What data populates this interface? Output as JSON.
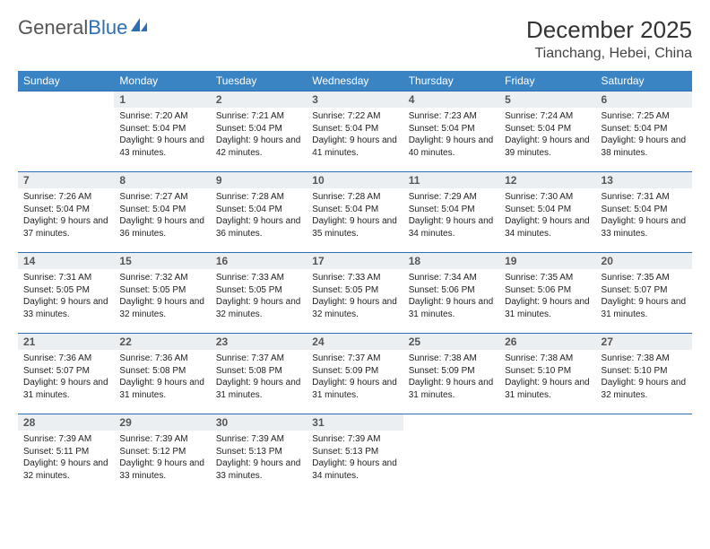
{
  "logo": {
    "part1": "General",
    "part2": "Blue"
  },
  "title": "December 2025",
  "location": "Tianchang, Hebei, China",
  "colors": {
    "header_bg": "#3b84c4",
    "header_text": "#ffffff",
    "rule": "#2e6fb3",
    "daynum_bg": "#eceff1",
    "daynum_text": "#555555",
    "body_text": "#222222",
    "logo_gray": "#555555",
    "logo_blue": "#2e6fb3"
  },
  "fonts": {
    "title_size_pt": 20,
    "location_size_pt": 12,
    "dayheader_size_pt": 9,
    "daynum_size_pt": 9,
    "body_size_pt": 7.5
  },
  "day_headers": [
    "Sunday",
    "Monday",
    "Tuesday",
    "Wednesday",
    "Thursday",
    "Friday",
    "Saturday"
  ],
  "weeks": [
    [
      {
        "num": "",
        "sunrise": "",
        "sunset": "",
        "daylight": ""
      },
      {
        "num": "1",
        "sunrise": "Sunrise: 7:20 AM",
        "sunset": "Sunset: 5:04 PM",
        "daylight": "Daylight: 9 hours and 43 minutes."
      },
      {
        "num": "2",
        "sunrise": "Sunrise: 7:21 AM",
        "sunset": "Sunset: 5:04 PM",
        "daylight": "Daylight: 9 hours and 42 minutes."
      },
      {
        "num": "3",
        "sunrise": "Sunrise: 7:22 AM",
        "sunset": "Sunset: 5:04 PM",
        "daylight": "Daylight: 9 hours and 41 minutes."
      },
      {
        "num": "4",
        "sunrise": "Sunrise: 7:23 AM",
        "sunset": "Sunset: 5:04 PM",
        "daylight": "Daylight: 9 hours and 40 minutes."
      },
      {
        "num": "5",
        "sunrise": "Sunrise: 7:24 AM",
        "sunset": "Sunset: 5:04 PM",
        "daylight": "Daylight: 9 hours and 39 minutes."
      },
      {
        "num": "6",
        "sunrise": "Sunrise: 7:25 AM",
        "sunset": "Sunset: 5:04 PM",
        "daylight": "Daylight: 9 hours and 38 minutes."
      }
    ],
    [
      {
        "num": "7",
        "sunrise": "Sunrise: 7:26 AM",
        "sunset": "Sunset: 5:04 PM",
        "daylight": "Daylight: 9 hours and 37 minutes."
      },
      {
        "num": "8",
        "sunrise": "Sunrise: 7:27 AM",
        "sunset": "Sunset: 5:04 PM",
        "daylight": "Daylight: 9 hours and 36 minutes."
      },
      {
        "num": "9",
        "sunrise": "Sunrise: 7:28 AM",
        "sunset": "Sunset: 5:04 PM",
        "daylight": "Daylight: 9 hours and 36 minutes."
      },
      {
        "num": "10",
        "sunrise": "Sunrise: 7:28 AM",
        "sunset": "Sunset: 5:04 PM",
        "daylight": "Daylight: 9 hours and 35 minutes."
      },
      {
        "num": "11",
        "sunrise": "Sunrise: 7:29 AM",
        "sunset": "Sunset: 5:04 PM",
        "daylight": "Daylight: 9 hours and 34 minutes."
      },
      {
        "num": "12",
        "sunrise": "Sunrise: 7:30 AM",
        "sunset": "Sunset: 5:04 PM",
        "daylight": "Daylight: 9 hours and 34 minutes."
      },
      {
        "num": "13",
        "sunrise": "Sunrise: 7:31 AM",
        "sunset": "Sunset: 5:04 PM",
        "daylight": "Daylight: 9 hours and 33 minutes."
      }
    ],
    [
      {
        "num": "14",
        "sunrise": "Sunrise: 7:31 AM",
        "sunset": "Sunset: 5:05 PM",
        "daylight": "Daylight: 9 hours and 33 minutes."
      },
      {
        "num": "15",
        "sunrise": "Sunrise: 7:32 AM",
        "sunset": "Sunset: 5:05 PM",
        "daylight": "Daylight: 9 hours and 32 minutes."
      },
      {
        "num": "16",
        "sunrise": "Sunrise: 7:33 AM",
        "sunset": "Sunset: 5:05 PM",
        "daylight": "Daylight: 9 hours and 32 minutes."
      },
      {
        "num": "17",
        "sunrise": "Sunrise: 7:33 AM",
        "sunset": "Sunset: 5:05 PM",
        "daylight": "Daylight: 9 hours and 32 minutes."
      },
      {
        "num": "18",
        "sunrise": "Sunrise: 7:34 AM",
        "sunset": "Sunset: 5:06 PM",
        "daylight": "Daylight: 9 hours and 31 minutes."
      },
      {
        "num": "19",
        "sunrise": "Sunrise: 7:35 AM",
        "sunset": "Sunset: 5:06 PM",
        "daylight": "Daylight: 9 hours and 31 minutes."
      },
      {
        "num": "20",
        "sunrise": "Sunrise: 7:35 AM",
        "sunset": "Sunset: 5:07 PM",
        "daylight": "Daylight: 9 hours and 31 minutes."
      }
    ],
    [
      {
        "num": "21",
        "sunrise": "Sunrise: 7:36 AM",
        "sunset": "Sunset: 5:07 PM",
        "daylight": "Daylight: 9 hours and 31 minutes."
      },
      {
        "num": "22",
        "sunrise": "Sunrise: 7:36 AM",
        "sunset": "Sunset: 5:08 PM",
        "daylight": "Daylight: 9 hours and 31 minutes."
      },
      {
        "num": "23",
        "sunrise": "Sunrise: 7:37 AM",
        "sunset": "Sunset: 5:08 PM",
        "daylight": "Daylight: 9 hours and 31 minutes."
      },
      {
        "num": "24",
        "sunrise": "Sunrise: 7:37 AM",
        "sunset": "Sunset: 5:09 PM",
        "daylight": "Daylight: 9 hours and 31 minutes."
      },
      {
        "num": "25",
        "sunrise": "Sunrise: 7:38 AM",
        "sunset": "Sunset: 5:09 PM",
        "daylight": "Daylight: 9 hours and 31 minutes."
      },
      {
        "num": "26",
        "sunrise": "Sunrise: 7:38 AM",
        "sunset": "Sunset: 5:10 PM",
        "daylight": "Daylight: 9 hours and 31 minutes."
      },
      {
        "num": "27",
        "sunrise": "Sunrise: 7:38 AM",
        "sunset": "Sunset: 5:10 PM",
        "daylight": "Daylight: 9 hours and 32 minutes."
      }
    ],
    [
      {
        "num": "28",
        "sunrise": "Sunrise: 7:39 AM",
        "sunset": "Sunset: 5:11 PM",
        "daylight": "Daylight: 9 hours and 32 minutes."
      },
      {
        "num": "29",
        "sunrise": "Sunrise: 7:39 AM",
        "sunset": "Sunset: 5:12 PM",
        "daylight": "Daylight: 9 hours and 33 minutes."
      },
      {
        "num": "30",
        "sunrise": "Sunrise: 7:39 AM",
        "sunset": "Sunset: 5:13 PM",
        "daylight": "Daylight: 9 hours and 33 minutes."
      },
      {
        "num": "31",
        "sunrise": "Sunrise: 7:39 AM",
        "sunset": "Sunset: 5:13 PM",
        "daylight": "Daylight: 9 hours and 34 minutes."
      },
      {
        "num": "",
        "sunrise": "",
        "sunset": "",
        "daylight": ""
      },
      {
        "num": "",
        "sunrise": "",
        "sunset": "",
        "daylight": ""
      },
      {
        "num": "",
        "sunrise": "",
        "sunset": "",
        "daylight": ""
      }
    ]
  ]
}
